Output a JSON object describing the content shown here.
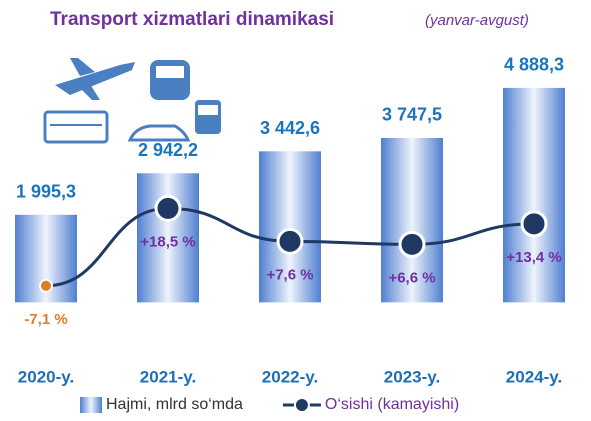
{
  "chart_data": {
    "type": "bar_line",
    "title": "Transport xizmatlari dinamikasi",
    "subtitle": "(yanvar-avgust)",
    "categories": [
      "2020-y.",
      "2021-y.",
      "2022-y.",
      "2023-y.",
      "2024-y."
    ],
    "ylim": [
      -1200,
      5000
    ],
    "y2lim": [
      -30,
      60
    ],
    "series": [
      {
        "name": "Hajmi, mlrd so‘mda",
        "type": "bar",
        "color": "#5b8fd6",
        "values": [
          1995.3,
          2942.2,
          3442.6,
          3747.5,
          4888.3
        ],
        "value_labels": [
          "1 995,3",
          "2 942,2",
          "3 442,6",
          "3 747,5",
          "4 888,3"
        ]
      },
      {
        "name": "O‘sishi (kamayishi)",
        "type": "line",
        "axis": "y2",
        "color": "#1f3864",
        "negative_color": "#e07b28",
        "label_color": "#7030a0",
        "values": [
          -7.1,
          18.5,
          7.6,
          6.6,
          13.4
        ],
        "value_labels": [
          "-7,1 %",
          "+18,5 %",
          "+7,6 %",
          "+6,6 %",
          "+13,4 %"
        ]
      }
    ]
  }
}
